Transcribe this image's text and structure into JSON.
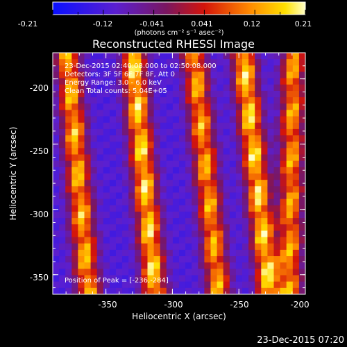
{
  "colorbar": {
    "tick_labels": [
      "-0.21",
      "-0.12",
      "-0.041",
      "0.041",
      "0.12",
      "0.21"
    ],
    "unit_label": "(photons cm⁻² s⁻¹ asec⁻²)"
  },
  "chart_data": {
    "type": "heatmap",
    "title": "Reconstructed RHESSI Image",
    "xlabel": "Heliocentric X (arcsec)",
    "ylabel": "Heliocentric Y (arcsec)",
    "xlim": [
      -390,
      -200
    ],
    "ylim": [
      -365,
      -180
    ],
    "x_ticks": [
      -350,
      -300,
      -250,
      -200
    ],
    "x_tick_labels": [
      "-350",
      "-300",
      "-250",
      "-200"
    ],
    "y_ticks": [
      -200,
      -250,
      -300,
      -350
    ],
    "y_tick_labels": [
      "-200",
      "-250",
      "-300",
      "-350"
    ],
    "color_range": [
      -0.21,
      0.21
    ],
    "stripes": [
      {
        "x_at_top": -379,
        "x_at_bottom": -363,
        "peak": 0.18
      },
      {
        "x_at_top": -330,
        "x_at_bottom": -313,
        "peak": 0.21
      },
      {
        "x_at_top": -284,
        "x_at_bottom": -265,
        "peak": 0.17
      },
      {
        "x_at_top": -247,
        "x_at_bottom": -227,
        "peak": 0.21
      },
      {
        "x_at_top": -209,
        "x_at_bottom": -212,
        "peak": 0.16
      }
    ],
    "annotations": [
      "23-Dec-2015 02:40:08.000 to 02:50:08.000",
      "Detectors: 3F 5F 6F 7F 8F, Att 0",
      "Energy Range: 3.0 - 6.0 keV",
      "Clean     Total counts: 5.04E+05"
    ],
    "peak_label": "Position of Peak = [-236,-284]"
  },
  "footer": {
    "timestamp": "23-Dec-2015 07:20"
  }
}
